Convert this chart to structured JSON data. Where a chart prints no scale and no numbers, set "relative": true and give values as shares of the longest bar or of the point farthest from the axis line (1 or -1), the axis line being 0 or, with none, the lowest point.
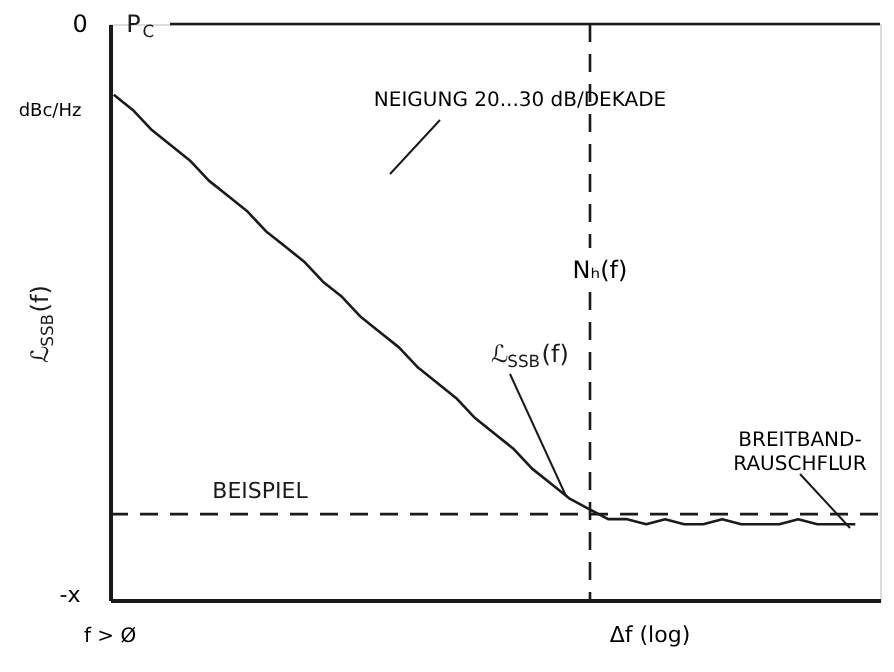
{
  "chart_data": {
    "type": "line",
    "relative": true,
    "tick_labels": false,
    "ylabel": "ℒ$_{SSB}$(f)",
    "xlabel": "Δf (log)",
    "categories": [
      null,
      null,
      null,
      null,
      null,
      null,
      null,
      null,
      null,
      null,
      null,
      null,
      null,
      null,
      null,
      null,
      null,
      null,
      null,
      null,
      null,
      null,
      null,
      null,
      null,
      null,
      null,
      null,
      null,
      null,
      null,
      null,
      null,
      null,
      null,
      null,
      null,
      null,
      null,
      null,
      null
    ],
    "series": [
      {
        "color": "#1a1a1a",
        "values": [
          1.0,
          0.97,
          0.93,
          0.9,
          0.87,
          0.83,
          0.8,
          0.77,
          0.73,
          0.7,
          0.67,
          0.63,
          0.6,
          0.56,
          0.53,
          0.5,
          0.46,
          0.43,
          0.4,
          0.36,
          0.33,
          0.3,
          0.26,
          0.23,
          0.2,
          0.18,
          0.16,
          0.16,
          0.15,
          0.16,
          0.15,
          0.15,
          0.16,
          0.15,
          0.15,
          0.15,
          0.16,
          0.15,
          0.15,
          0.15,
          null
        ]
      }
    ],
    "line_style": "solid",
    "ref_lines": [
      {
        "axis": "y",
        "value": 1.14,
        "label": "P$_{C}$",
        "line_style": "solid",
        "color": "#1a1a1a"
      },
      {
        "axis": "y",
        "value": 0.17,
        "label": "BEISPIEL",
        "line_style": "dashed",
        "color": "#1a1a1a"
      }
    ],
    "annotations": [
      "0",
      "dBc/Hz",
      "-x",
      "f > Ø",
      "NEIGUNG 20...30 dB/DEKADE",
      "ℒ$_{SSB}$(f)",
      "BREITBAND-\nRAUSCHFLUR",
      "Nₕ(f)"
    ]
  }
}
